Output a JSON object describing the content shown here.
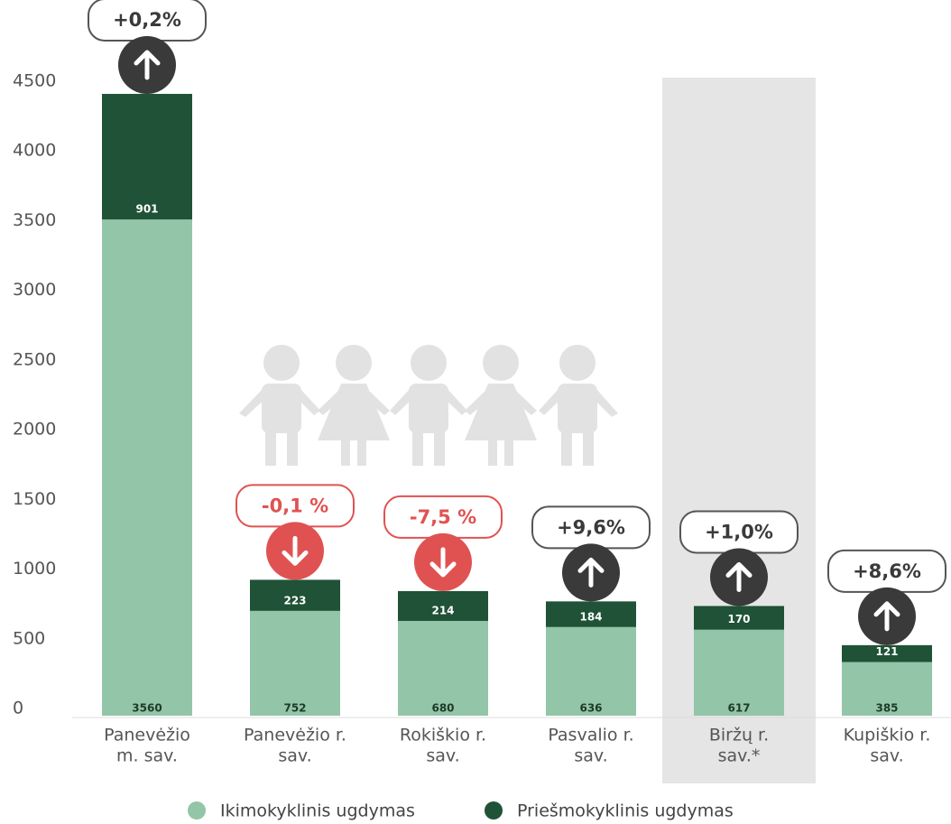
{
  "chart_data": {
    "type": "stacked-bar",
    "categories": [
      [
        "Panevėžio",
        "m. sav."
      ],
      [
        "Panevėžio r.",
        "sav."
      ],
      [
        "Rokiškio r.",
        "sav."
      ],
      [
        "Pasvalio r.",
        "sav."
      ],
      [
        "Biržų r.",
        "sav.*"
      ],
      [
        "Kupiškio r.",
        "sav."
      ]
    ],
    "series": [
      {
        "name": "Ikimokyklinis ugdymas",
        "color": "#93c5a8",
        "values": [
          3560,
          752,
          680,
          636,
          617,
          385
        ],
        "label_color": "#1f3a2a"
      },
      {
        "name": "Priešmokyklinis ugdymas",
        "color": "#1f5236",
        "values": [
          901,
          223,
          214,
          184,
          170,
          121
        ],
        "label_color": "#ffffff"
      }
    ],
    "changes": [
      {
        "label": "+0,2%",
        "direction": "up"
      },
      {
        "label": "-0,1 %",
        "direction": "down"
      },
      {
        "label": "-7,5 %",
        "direction": "down"
      },
      {
        "label": "+9,6%",
        "direction": "up"
      },
      {
        "label": "+1,0%",
        "direction": "up"
      },
      {
        "label": "+8,6%",
        "direction": "up"
      }
    ],
    "highlight_category": 4,
    "ylim": [
      0,
      4500
    ],
    "yticks": [
      0,
      500,
      1000,
      1500,
      2000,
      2500,
      3000,
      3500,
      4000,
      4500
    ],
    "grid": false,
    "legend": "bottom"
  }
}
